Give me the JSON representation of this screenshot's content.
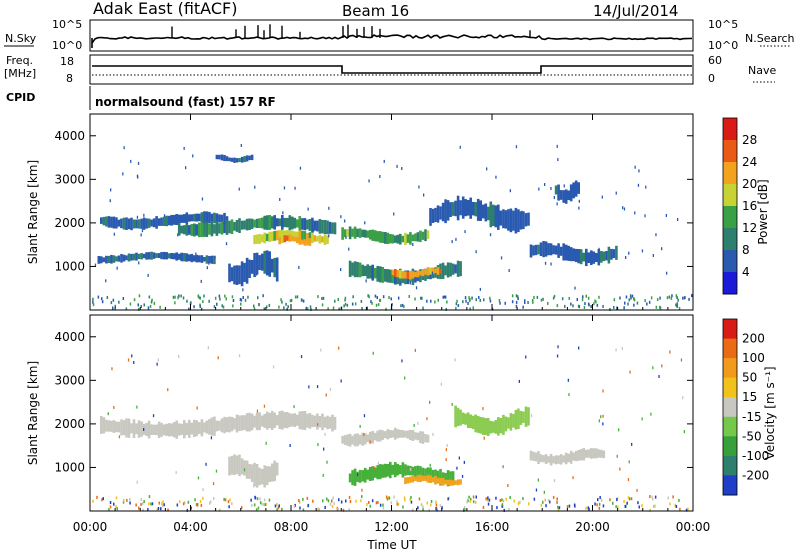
{
  "header": {
    "station": "Adak East (fitACF)",
    "beam": "Beam 16",
    "date": "14/Jul/2014"
  },
  "top_panels": {
    "nsky_label": "N.Sky",
    "nsky_ticks": [
      "10^5",
      "10^0"
    ],
    "nsearch_label": "N.Search",
    "nsearch_ticks": [
      "10^5",
      "10^0"
    ],
    "freq_label_1": "Freq.",
    "freq_label_2": "[MHz]",
    "freq_ticks": [
      "18",
      "8"
    ],
    "nave_label": "Nave",
    "nave_ticks": [
      "60",
      "0"
    ],
    "cpid_label": "CPID",
    "cpid_text": "normalsound (fast) 157 RF"
  },
  "chart_data": [
    {
      "type": "heatmap",
      "name": "power-panel",
      "ylabel": "Slant Range [km]",
      "xlabel": "",
      "y_ticks": [
        "1000",
        "2000",
        "3000",
        "4000"
      ],
      "y_tick_values": [
        1000,
        2000,
        3000,
        4000
      ],
      "ylim": [
        0,
        4500
      ],
      "colorbar": {
        "label": "Power [dB]",
        "ticks": [
          "4",
          "8",
          "12",
          "16",
          "20",
          "24",
          "28"
        ],
        "colors": [
          "#1a1ad8",
          "#2a5ab0",
          "#2f7f6f",
          "#3aa046",
          "#c7d235",
          "#f2a21c",
          "#ea5a16",
          "#d81b14"
        ]
      },
      "echo_regions": [
        {
          "t0": 0.4,
          "t1": 5.5,
          "r0": 1900,
          "r1": 2200,
          "level": 1
        },
        {
          "t0": 3.5,
          "t1": 9.8,
          "r0": 1750,
          "r1": 2100,
          "level": 2
        },
        {
          "t0": 6.5,
          "t1": 9.5,
          "r0": 1550,
          "r1": 1800,
          "level": 4
        },
        {
          "t0": 7.5,
          "t1": 8.8,
          "r0": 1500,
          "r1": 1700,
          "level": 5
        },
        {
          "t0": 10.0,
          "t1": 13.5,
          "r0": 1550,
          "r1": 1850,
          "level": 3
        },
        {
          "t0": 10.3,
          "t1": 14.8,
          "r0": 650,
          "r1": 1050,
          "level": 2
        },
        {
          "t0": 12.0,
          "t1": 14.0,
          "r0": 750,
          "r1": 950,
          "level": 5
        },
        {
          "t0": 5.5,
          "t1": 7.5,
          "r0": 650,
          "r1": 1250,
          "level": 1
        },
        {
          "t0": 0.3,
          "t1": 5.0,
          "r0": 1100,
          "r1": 1300,
          "level": 1
        },
        {
          "t0": 13.5,
          "t1": 17.5,
          "r0": 1900,
          "r1": 2500,
          "level": 1
        },
        {
          "t0": 17.5,
          "t1": 21.0,
          "r0": 1100,
          "r1": 1500,
          "level": 1
        },
        {
          "t0": 5.0,
          "t1": 6.5,
          "r0": 3400,
          "r1": 3550,
          "level": 1
        },
        {
          "t0": 18.5,
          "t1": 19.5,
          "r0": 2500,
          "r1": 2900,
          "level": 1
        }
      ]
    },
    {
      "type": "heatmap",
      "name": "velocity-panel",
      "ylabel": "Slant Range [km]",
      "xlabel": "Time UT",
      "x_ticks": [
        "00:00",
        "04:00",
        "08:00",
        "12:00",
        "16:00",
        "20:00",
        "00:00"
      ],
      "x_tick_values": [
        0,
        4,
        8,
        12,
        16,
        20,
        24
      ],
      "xlim": [
        0,
        24
      ],
      "y_ticks": [
        "1000",
        "2000",
        "3000",
        "4000"
      ],
      "y_tick_values": [
        1000,
        2000,
        3000,
        4000
      ],
      "ylim": [
        0,
        4500
      ],
      "colorbar": {
        "label": "Velocity [m s⁻¹]",
        "ticks": [
          "200",
          "100",
          "50",
          "15",
          "-15",
          "-50",
          "-100",
          "-200"
        ],
        "colors": [
          "#1f3fc8",
          "#2f7f6f",
          "#35a03c",
          "#74c84a",
          "#c8c8c0",
          "#f2c21c",
          "#f29a1c",
          "#ea6a16",
          "#d81b14"
        ]
      },
      "echo_regions": [
        {
          "t0": 0.4,
          "t1": 9.8,
          "r0": 1750,
          "r1": 2200,
          "level": "grey"
        },
        {
          "t0": 10.0,
          "t1": 13.5,
          "r0": 1550,
          "r1": 1850,
          "level": "grey"
        },
        {
          "t0": 10.3,
          "t1": 14.5,
          "r0": 650,
          "r1": 1050,
          "level": "green"
        },
        {
          "t0": 12.5,
          "t1": 14.8,
          "r0": 600,
          "r1": 800,
          "level": "orange"
        },
        {
          "t0": 5.5,
          "t1": 7.5,
          "r0": 650,
          "r1": 1200,
          "level": "grey"
        },
        {
          "t0": 14.5,
          "t1": 17.5,
          "r0": 1800,
          "r1": 2300,
          "level": "lightgreen"
        },
        {
          "t0": 17.5,
          "t1": 20.5,
          "r0": 1100,
          "r1": 1400,
          "level": "grey"
        }
      ]
    }
  ]
}
